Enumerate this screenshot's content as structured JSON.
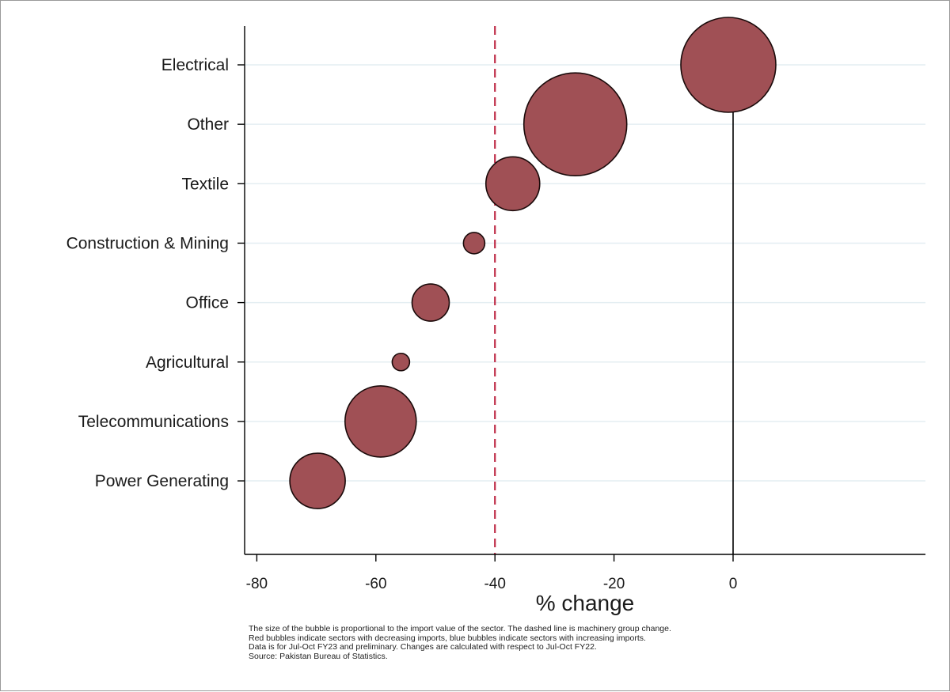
{
  "chart_data": {
    "type": "scatter",
    "subtype": "bubble",
    "xlabel": "% change",
    "ylabel": "",
    "xlim": [
      -82,
      32
    ],
    "x_ticks": [
      -80,
      -60,
      -40,
      -20,
      0
    ],
    "grid": true,
    "bubble_color": "#a05055",
    "bubble_edge_color": "#1a0a0a",
    "reference_lines": [
      {
        "x": -40,
        "style": "dashed",
        "color": "#c0304a",
        "meaning": "machinery group change"
      },
      {
        "x": 0,
        "style": "solid",
        "color": "#000000"
      }
    ],
    "categories": [
      "Electrical",
      "Other",
      "Textile",
      "Construction & Mining",
      "Office",
      "Agricultural",
      "Telecommunications",
      "Power Generating"
    ],
    "points": [
      {
        "category": "Electrical",
        "x": -0.8,
        "size": 60
      },
      {
        "category": "Other",
        "x": -26.5,
        "size": 65
      },
      {
        "category": "Textile",
        "x": -37,
        "size": 34
      },
      {
        "category": "Construction & Mining",
        "x": -43.5,
        "size": 13.5
      },
      {
        "category": "Office",
        "x": -50.8,
        "size": 23.5
      },
      {
        "category": "Agricultural",
        "x": -55.8,
        "size": 11
      },
      {
        "category": "Telecommunications",
        "x": -59.2,
        "size": 45
      },
      {
        "category": "Power Generating",
        "x": -69.8,
        "size": 35
      }
    ],
    "notes": [
      "The size of the bubble is proportional to the import value of the sector. The dashed line is machinery group change.",
      "Red bubbles indicate sectors with decreasing imports, blue bubbles indicate sectors with increasing imports.",
      "Data is for Jul-Oct FY23 and preliminary. Changes are calculated with respect to Jul-Oct FY22.",
      "Source: Pakistan Bureau of Statistics."
    ]
  }
}
